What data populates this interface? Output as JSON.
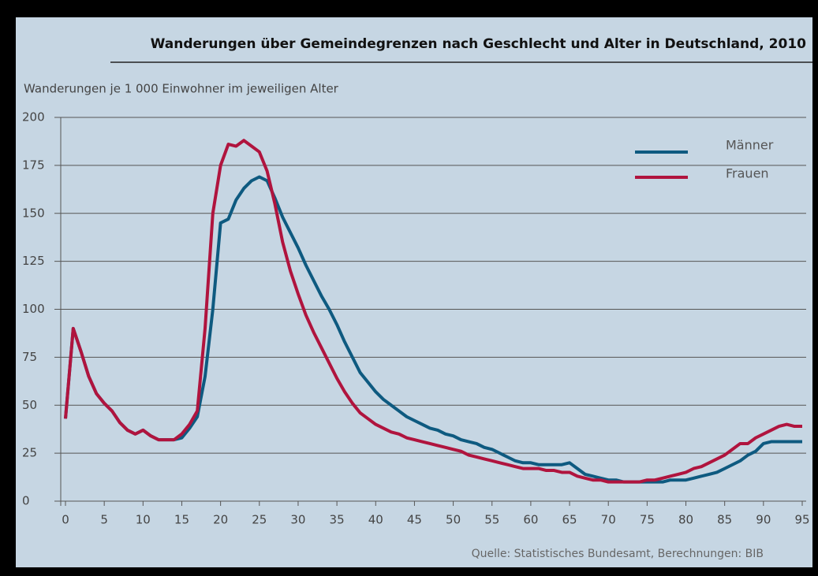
{
  "chart_data": {
    "type": "line",
    "title": "Wanderungen über Gemeindegrenzen nach Geschlecht und Alter in Deutschland, 2010",
    "ylabel": "Wanderungen je 1 000 Einwohner im jeweiligen Alter",
    "source": "Quelle: Statistisches Bundesamt, Berechnungen: BIB",
    "x": [
      0,
      1,
      2,
      3,
      4,
      5,
      6,
      7,
      8,
      9,
      10,
      11,
      12,
      13,
      14,
      15,
      16,
      17,
      18,
      19,
      20,
      21,
      22,
      23,
      24,
      25,
      26,
      27,
      28,
      29,
      30,
      31,
      32,
      33,
      34,
      35,
      36,
      37,
      38,
      39,
      40,
      41,
      42,
      43,
      44,
      45,
      46,
      47,
      48,
      49,
      50,
      51,
      52,
      53,
      54,
      55,
      56,
      57,
      58,
      59,
      60,
      61,
      62,
      63,
      64,
      65,
      66,
      67,
      68,
      69,
      70,
      71,
      72,
      73,
      74,
      75,
      76,
      77,
      78,
      79,
      80,
      81,
      82,
      83,
      84,
      85,
      86,
      87,
      88,
      89,
      90,
      91,
      92,
      93,
      94,
      95
    ],
    "series": [
      {
        "name": "Männer",
        "color": "#0e5a80",
        "values": [
          43,
          90,
          78,
          65,
          56,
          51,
          47,
          41,
          37,
          35,
          37,
          34,
          32,
          32,
          32,
          33,
          38,
          44,
          65,
          100,
          145,
          147,
          157,
          163,
          167,
          169,
          167,
          158,
          148,
          140,
          132,
          123,
          115,
          107,
          100,
          92,
          83,
          75,
          67,
          62,
          57,
          53,
          50,
          47,
          44,
          42,
          40,
          38,
          37,
          35,
          34,
          32,
          31,
          30,
          28,
          27,
          25,
          23,
          21,
          20,
          20,
          19,
          19,
          19,
          19,
          20,
          17,
          14,
          13,
          12,
          11,
          11,
          10,
          10,
          10,
          10,
          10,
          10,
          11,
          11,
          11,
          12,
          13,
          14,
          15,
          17,
          19,
          21,
          24,
          26,
          30,
          31,
          31,
          31,
          31,
          31
        ]
      },
      {
        "name": "Frauen",
        "color": "#b0143e",
        "values": [
          43,
          90,
          78,
          65,
          56,
          51,
          47,
          41,
          37,
          35,
          37,
          34,
          32,
          32,
          32,
          35,
          40,
          47,
          90,
          150,
          175,
          186,
          185,
          188,
          185,
          182,
          172,
          155,
          135,
          120,
          108,
          97,
          88,
          80,
          72,
          64,
          57,
          51,
          46,
          43,
          40,
          38,
          36,
          35,
          33,
          32,
          31,
          30,
          29,
          28,
          27,
          26,
          24,
          23,
          22,
          21,
          20,
          19,
          18,
          17,
          17,
          17,
          16,
          16,
          15,
          15,
          13,
          12,
          11,
          11,
          10,
          10,
          10,
          10,
          10,
          11,
          11,
          12,
          13,
          14,
          15,
          17,
          18,
          20,
          22,
          24,
          27,
          30,
          30,
          33,
          35,
          37,
          39,
          40,
          39,
          39
        ]
      }
    ],
    "xlim": [
      0,
      95
    ],
    "xticks": [
      0,
      5,
      10,
      15,
      20,
      25,
      30,
      35,
      40,
      45,
      50,
      55,
      60,
      65,
      70,
      75,
      80,
      85,
      90,
      95
    ],
    "ylim": [
      0,
      200
    ],
    "yticks": [
      0,
      25,
      50,
      75,
      100,
      125,
      150,
      175,
      200
    ],
    "grid": true,
    "legend": "upper right"
  }
}
